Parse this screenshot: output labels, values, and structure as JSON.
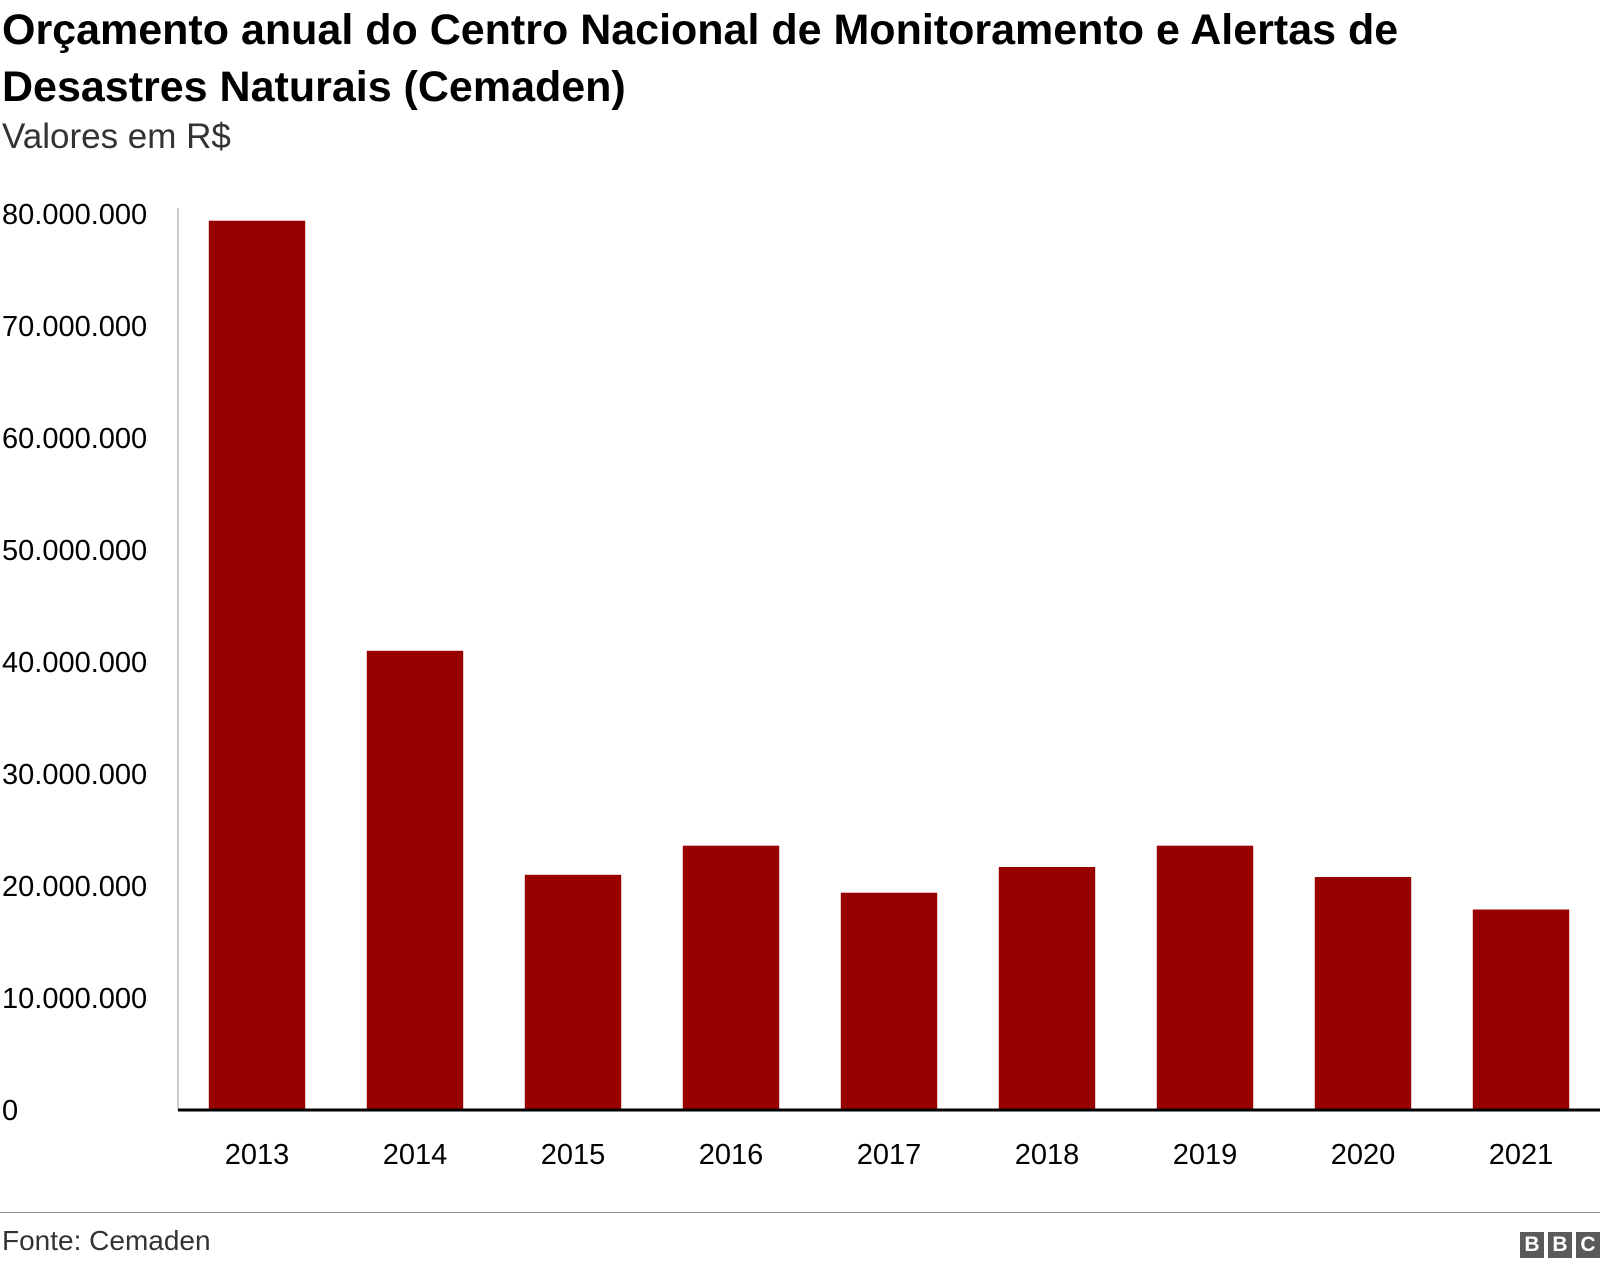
{
  "chart_data": {
    "type": "bar",
    "title": "Orçamento anual do Centro Nacional de Monitoramento e Alertas de Desastres Naturais (Cemaden)",
    "subtitle": "Valores em R$",
    "categories": [
      "2013",
      "2014",
      "2015",
      "2016",
      "2017",
      "2018",
      "2019",
      "2020",
      "2021"
    ],
    "values": [
      79400000,
      41000000,
      21000000,
      23600000,
      19400000,
      21700000,
      23600000,
      20800000,
      17900000
    ],
    "ylim": [
      0,
      80000000
    ],
    "yticks": [
      0,
      10000000,
      20000000,
      30000000,
      40000000,
      50000000,
      60000000,
      70000000,
      80000000
    ],
    "ytick_labels": [
      "0",
      "10.000.000",
      "20.000.000",
      "30.000.000",
      "40.000.000",
      "50.000.000",
      "60.000.000",
      "70.000.000",
      "80.000.000"
    ],
    "bar_color": "#990000",
    "grid": false,
    "xlabel": "",
    "ylabel": ""
  },
  "footer": {
    "source": "Fonte: Cemaden",
    "logo_letters": [
      "B",
      "B",
      "C"
    ]
  }
}
